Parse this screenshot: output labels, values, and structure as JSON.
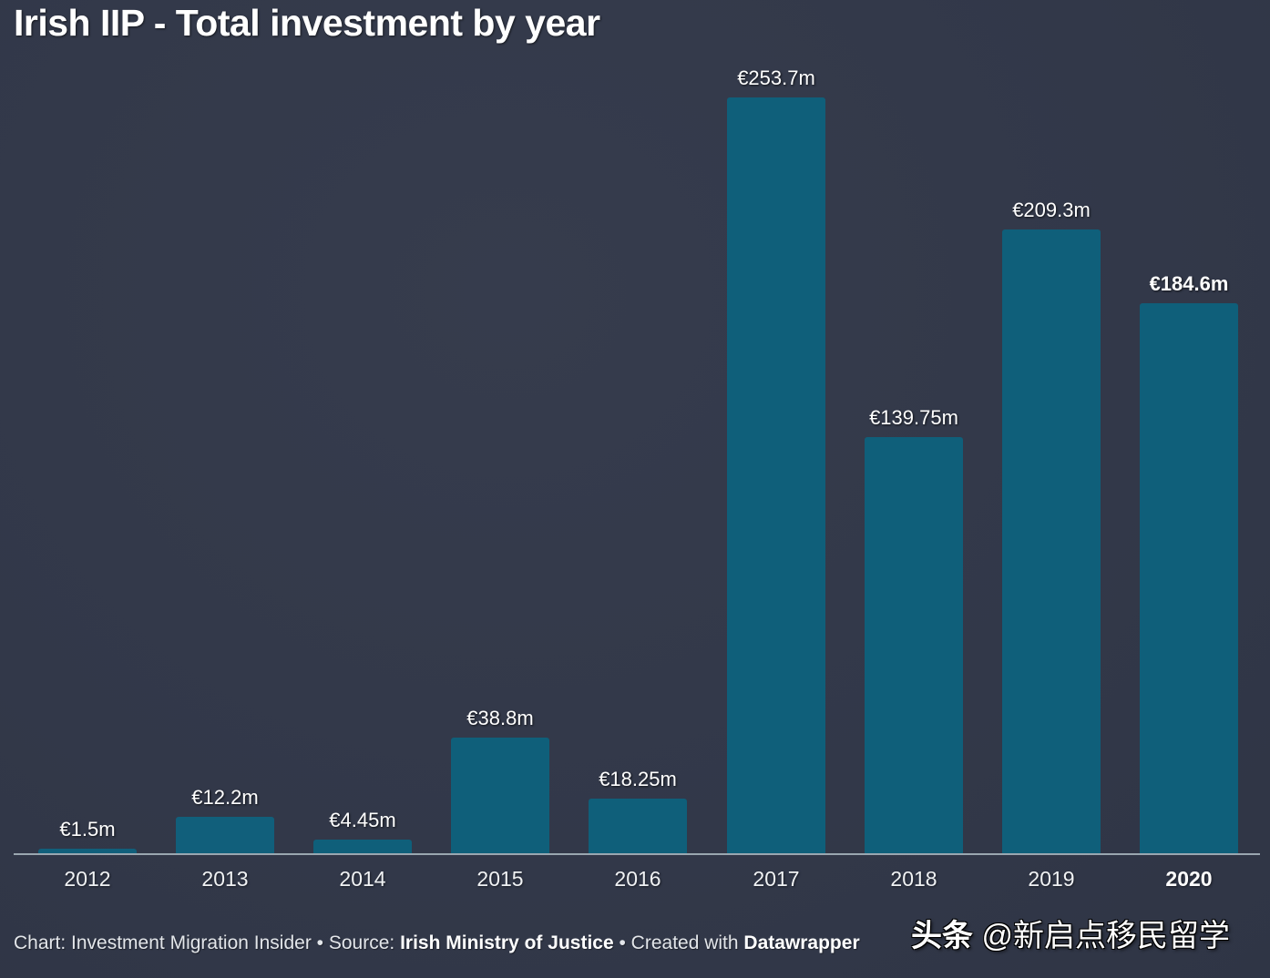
{
  "title": "Irish IIP - Total investment by year",
  "chart_data": {
    "type": "bar",
    "title": "Irish IIP - Total investment by year",
    "xlabel": "",
    "ylabel": "",
    "unit": "€ million",
    "categories": [
      "2012",
      "2013",
      "2014",
      "2015",
      "2016",
      "2017",
      "2018",
      "2019",
      "2020"
    ],
    "values": [
      1.5,
      12.2,
      4.45,
      38.8,
      18.25,
      253.7,
      139.75,
      209.3,
      184.6
    ],
    "value_labels": [
      "€1.5m",
      "€12.2m",
      "€4.45m",
      "€38.8m",
      "€18.25m",
      "€253.7m",
      "€139.75m",
      "€209.3m",
      "€184.6m"
    ],
    "highlighted_category": "2020",
    "ylim": [
      0,
      253.7
    ],
    "grid": false,
    "legend": "none",
    "bar_color": "#0f5f7a",
    "background_color": "#333a4a"
  },
  "footer": {
    "chart_prefix": "Chart: ",
    "chart_by": "Investment Migration Insider",
    "sep1": " • ",
    "source_prefix": "Source: ",
    "source": "Irish Ministry of Justice",
    "sep2": " • ",
    "created_prefix": "Created with ",
    "created_with": "Datawrapper"
  },
  "watermark": {
    "brand": "头条",
    "handle": " @新启点移民留学"
  }
}
